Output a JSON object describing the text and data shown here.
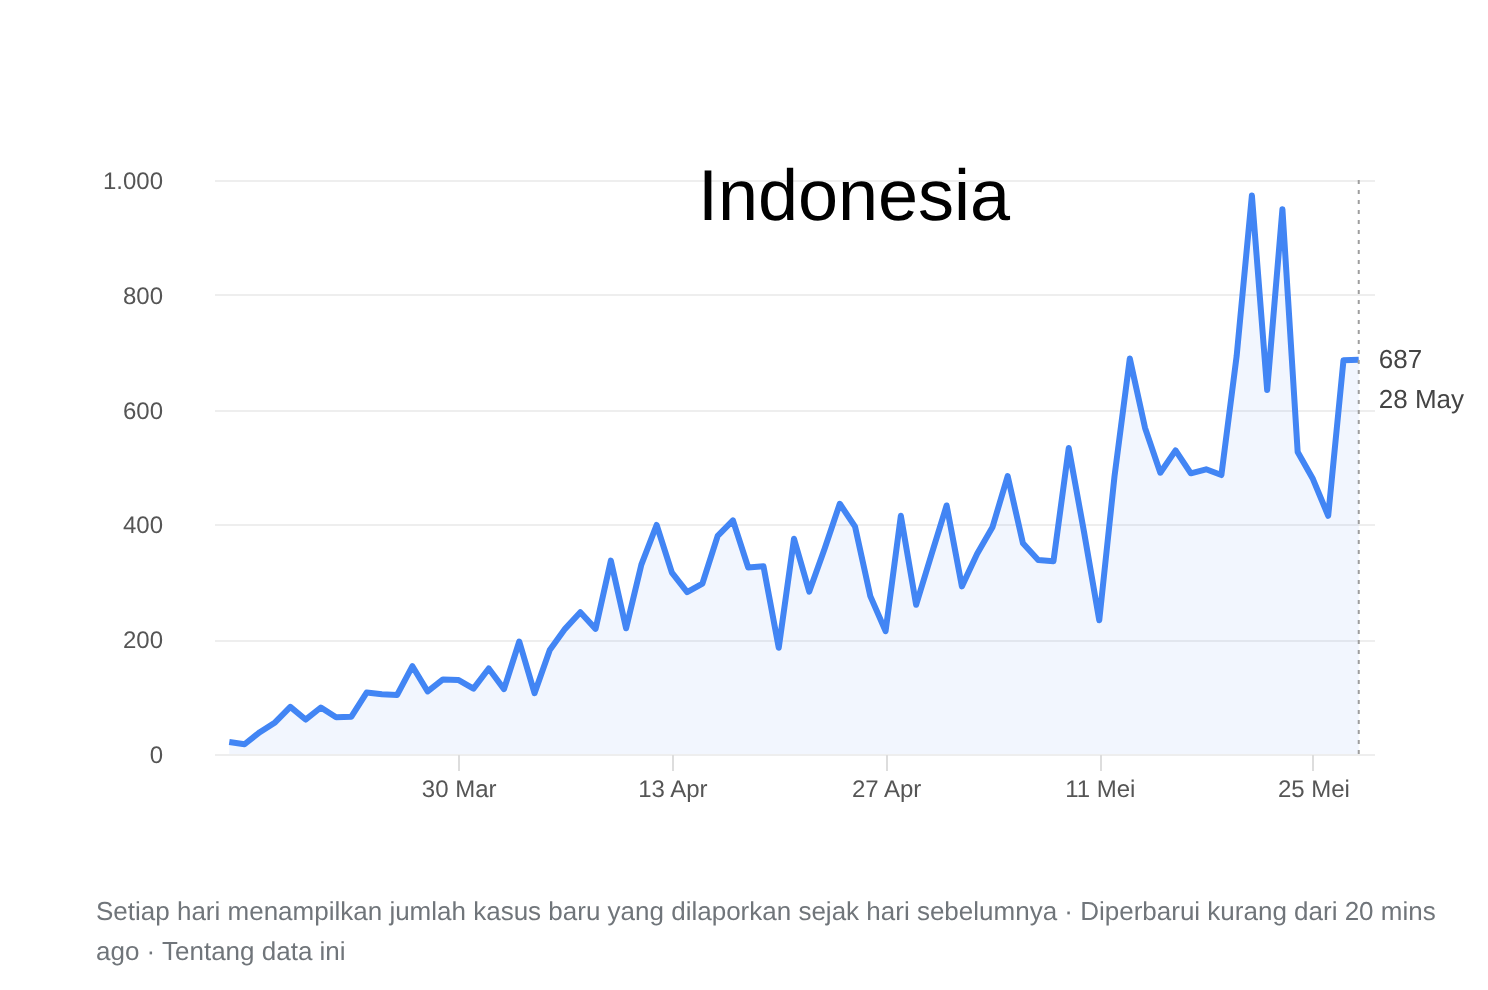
{
  "chart_data": {
    "type": "area",
    "title": "Indonesia",
    "x": [
      "--03-15",
      "--03-16",
      "--03-17",
      "--03-18",
      "--03-19",
      "--03-20",
      "--03-21",
      "--03-22",
      "--03-23",
      "--03-24",
      "--03-25",
      "--03-26",
      "--03-27",
      "--03-28",
      "--03-29",
      "--03-30",
      "--03-31",
      "--04-01",
      "--04-02",
      "--04-03",
      "--04-04",
      "--04-05",
      "--04-06",
      "--04-07",
      "--04-08",
      "--04-09",
      "--04-10",
      "--04-11",
      "--04-12",
      "--04-13",
      "--04-14",
      "--04-15",
      "--04-16",
      "--04-17",
      "--04-18",
      "--04-19",
      "--04-20",
      "--04-21",
      "--04-22",
      "--04-23",
      "--04-24",
      "--04-25",
      "--04-26",
      "--04-27",
      "--04-28",
      "--04-29",
      "--04-30",
      "--05-01",
      "--05-02",
      "--05-03",
      "--05-04",
      "--05-05",
      "--05-06",
      "--05-07",
      "--05-08",
      "--05-09",
      "--05-10",
      "--05-11",
      "--05-12",
      "--05-13",
      "--05-14",
      "--05-15",
      "--05-16",
      "--05-17",
      "--05-18",
      "--05-19",
      "--05-20",
      "--05-21",
      "--05-22",
      "--05-23",
      "--05-24",
      "--05-25",
      "--05-26",
      "--05-27",
      "--05-28"
    ],
    "series": [
      {
        "color": "#4285f4",
        "values": [
          21,
          17,
          38,
          55,
          82,
          60,
          81,
          64,
          65,
          107,
          104,
          103,
          153,
          109,
          130,
          129,
          114,
          149,
          113,
          196,
          106,
          181,
          218,
          247,
          218,
          337,
          219,
          330,
          399,
          316,
          282,
          297,
          380,
          407,
          325,
          327,
          185,
          375,
          283,
          357,
          436,
          396,
          275,
          214,
          415,
          260,
          347,
          433,
          292,
          349,
          395,
          484,
          367,
          338,
          336,
          533,
          387,
          233,
          484,
          689,
          568,
          490,
          529,
          489,
          496,
          486,
          693,
          973,
          634,
          949,
          526,
          479,
          415,
          686,
          687
        ]
      }
    ],
    "xlim": [
      "--03-14",
      "--05-29"
    ],
    "xticks": [
      {
        "value": "--03-30",
        "label": "30 Mar"
      },
      {
        "value": "--04-13",
        "label": "13 Apr"
      },
      {
        "value": "--04-27",
        "label": "27 Apr"
      },
      {
        "value": "--05-11",
        "label": "11 Mei"
      },
      {
        "value": "--05-25",
        "label": "25 Mei"
      }
    ],
    "ylim": [
      0,
      1000
    ],
    "yticks": [
      0,
      200,
      400,
      600,
      800,
      {
        "value": 1000,
        "label": "1.000"
      }
    ],
    "grid": "y",
    "ref_lines": [
      {
        "axis": "x",
        "value": "--05-28",
        "line_style": "dotted",
        "color": "#9e9e9e"
      }
    ],
    "annotations": [
      {
        "text": "687\n28 May",
        "x": "--05-28",
        "y": 687
      },
      "Setiap hari menampilkan jumlah kasus baru yang dilaporkan sejak hari sebelumnya · Diperbarui kurang dari 20 mins ago · Tentang data ini"
    ]
  }
}
